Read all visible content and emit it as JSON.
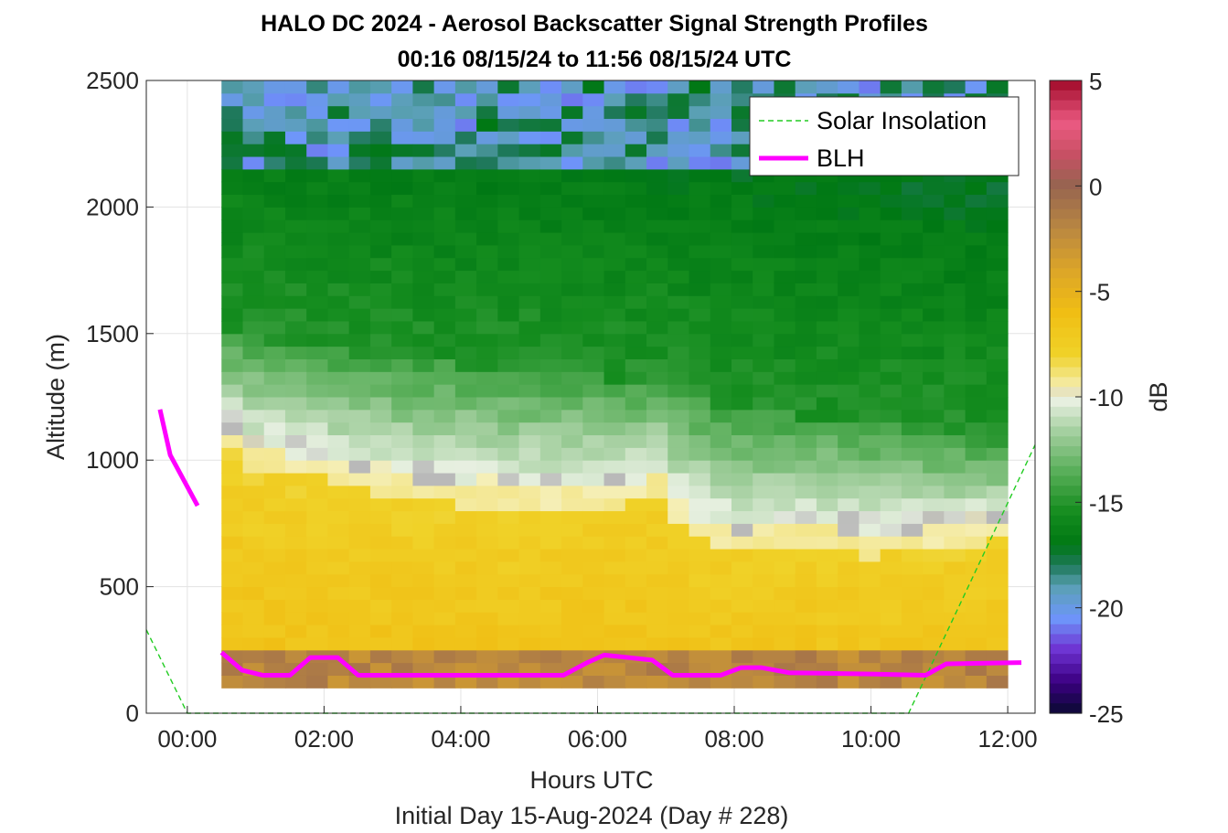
{
  "chart_data": {
    "type": "heatmap",
    "title_line1": "HALO DC 2024 - Aerosol Backscatter Signal Strength Profiles",
    "title_line2": "00:16 08/15/24 to 11:56 08/15/24  UTC",
    "xlabel": "Hours UTC",
    "xlabel2": "Initial Day 15-Aug-2024 (Day # 228)",
    "ylabel": "Altitude (m)",
    "colorbar_label": "dB",
    "xlim_hours": [
      -0.6,
      12.4
    ],
    "ylim": [
      0,
      2500
    ],
    "x_ticks": [
      {
        "value": 0,
        "label": "00:00"
      },
      {
        "value": 2,
        "label": "02:00"
      },
      {
        "value": 4,
        "label": "04:00"
      },
      {
        "value": 6,
        "label": "06:00"
      },
      {
        "value": 8,
        "label": "08:00"
      },
      {
        "value": 10,
        "label": "10:00"
      },
      {
        "value": 12,
        "label": "12:00"
      }
    ],
    "y_ticks": [
      {
        "value": 0,
        "label": "0"
      },
      {
        "value": 500,
        "label": "500"
      },
      {
        "value": 1000,
        "label": "1000"
      },
      {
        "value": 1500,
        "label": "1500"
      },
      {
        "value": 2000,
        "label": "2000"
      },
      {
        "value": 2500,
        "label": "2500"
      }
    ],
    "colorbar_range": [
      -25,
      5
    ],
    "colorbar_ticks": [
      {
        "value": 5,
        "label": "5"
      },
      {
        "value": 0,
        "label": "0"
      },
      {
        "value": -5,
        "label": "-5"
      },
      {
        "value": -10,
        "label": "-10"
      },
      {
        "value": -15,
        "label": "-15"
      },
      {
        "value": -20,
        "label": "-20"
      },
      {
        "value": -25,
        "label": "-25"
      }
    ],
    "grid": true,
    "legend_position": "top-right",
    "legend": [
      {
        "name": "Solar Insolation",
        "color": "#22cc22",
        "style": "dashed"
      },
      {
        "name": "BLH",
        "color": "#ff00ff",
        "style": "solid"
      }
    ],
    "heatmap_grid": {
      "x_start_hours": 0.5,
      "x_end_hours": 12.0,
      "y_start_m": 100,
      "y_end_m": 2500,
      "y_step_m": 50
    },
    "aerosol_layer_top_m": [
      {
        "hour": 0.5,
        "height": 1150
      },
      {
        "hour": 0.9,
        "height": 1050
      },
      {
        "hour": 1.5,
        "height": 1030
      },
      {
        "hour": 2.3,
        "height": 980
      },
      {
        "hour": 3.0,
        "height": 930
      },
      {
        "hour": 4.0,
        "height": 900
      },
      {
        "hour": 5.0,
        "height": 880
      },
      {
        "hour": 6.2,
        "height": 900
      },
      {
        "hour": 7.0,
        "height": 950
      },
      {
        "hour": 7.3,
        "height": 780
      },
      {
        "hour": 8.0,
        "height": 720
      },
      {
        "hour": 9.0,
        "height": 740
      },
      {
        "hour": 10.0,
        "height": 700
      },
      {
        "hour": 11.0,
        "height": 730
      },
      {
        "hour": 12.0,
        "height": 760
      }
    ],
    "mixed_layer_top_m": [
      {
        "hour": 0.5,
        "height": 1500
      },
      {
        "hour": 1.5,
        "height": 1450
      },
      {
        "hour": 3.0,
        "height": 1400
      },
      {
        "hour": 5.0,
        "height": 1350
      },
      {
        "hour": 7.0,
        "height": 1300
      },
      {
        "hour": 8.0,
        "height": 1200
      },
      {
        "hour": 10.0,
        "height": 1150
      },
      {
        "hour": 12.0,
        "height": 1050
      }
    ],
    "blh_series": [
      {
        "x": -0.4,
        "y": 1200
      },
      {
        "x": -0.25,
        "y": 1020
      },
      {
        "x": 0.15,
        "y": 820
      },
      {
        "x": 0.5,
        "y": 240
      },
      {
        "x": 0.8,
        "y": 170
      },
      {
        "x": 1.1,
        "y": 150
      },
      {
        "x": 1.5,
        "y": 150
      },
      {
        "x": 1.8,
        "y": 220
      },
      {
        "x": 2.2,
        "y": 220
      },
      {
        "x": 2.5,
        "y": 150
      },
      {
        "x": 5.5,
        "y": 150
      },
      {
        "x": 5.85,
        "y": 200
      },
      {
        "x": 6.1,
        "y": 230
      },
      {
        "x": 6.8,
        "y": 210
      },
      {
        "x": 7.1,
        "y": 150
      },
      {
        "x": 7.8,
        "y": 150
      },
      {
        "x": 8.1,
        "y": 180
      },
      {
        "x": 8.4,
        "y": 180
      },
      {
        "x": 8.8,
        "y": 160
      },
      {
        "x": 10.0,
        "y": 155
      },
      {
        "x": 10.8,
        "y": 150
      },
      {
        "x": 11.1,
        "y": 195
      },
      {
        "x": 12.2,
        "y": 200
      }
    ],
    "solar_insolation_series": [
      {
        "x": -0.6,
        "y": 330
      },
      {
        "x": 0.0,
        "y": 0
      },
      {
        "x": 10.55,
        "y": 0
      },
      {
        "x": 12.4,
        "y": 1060
      }
    ]
  }
}
